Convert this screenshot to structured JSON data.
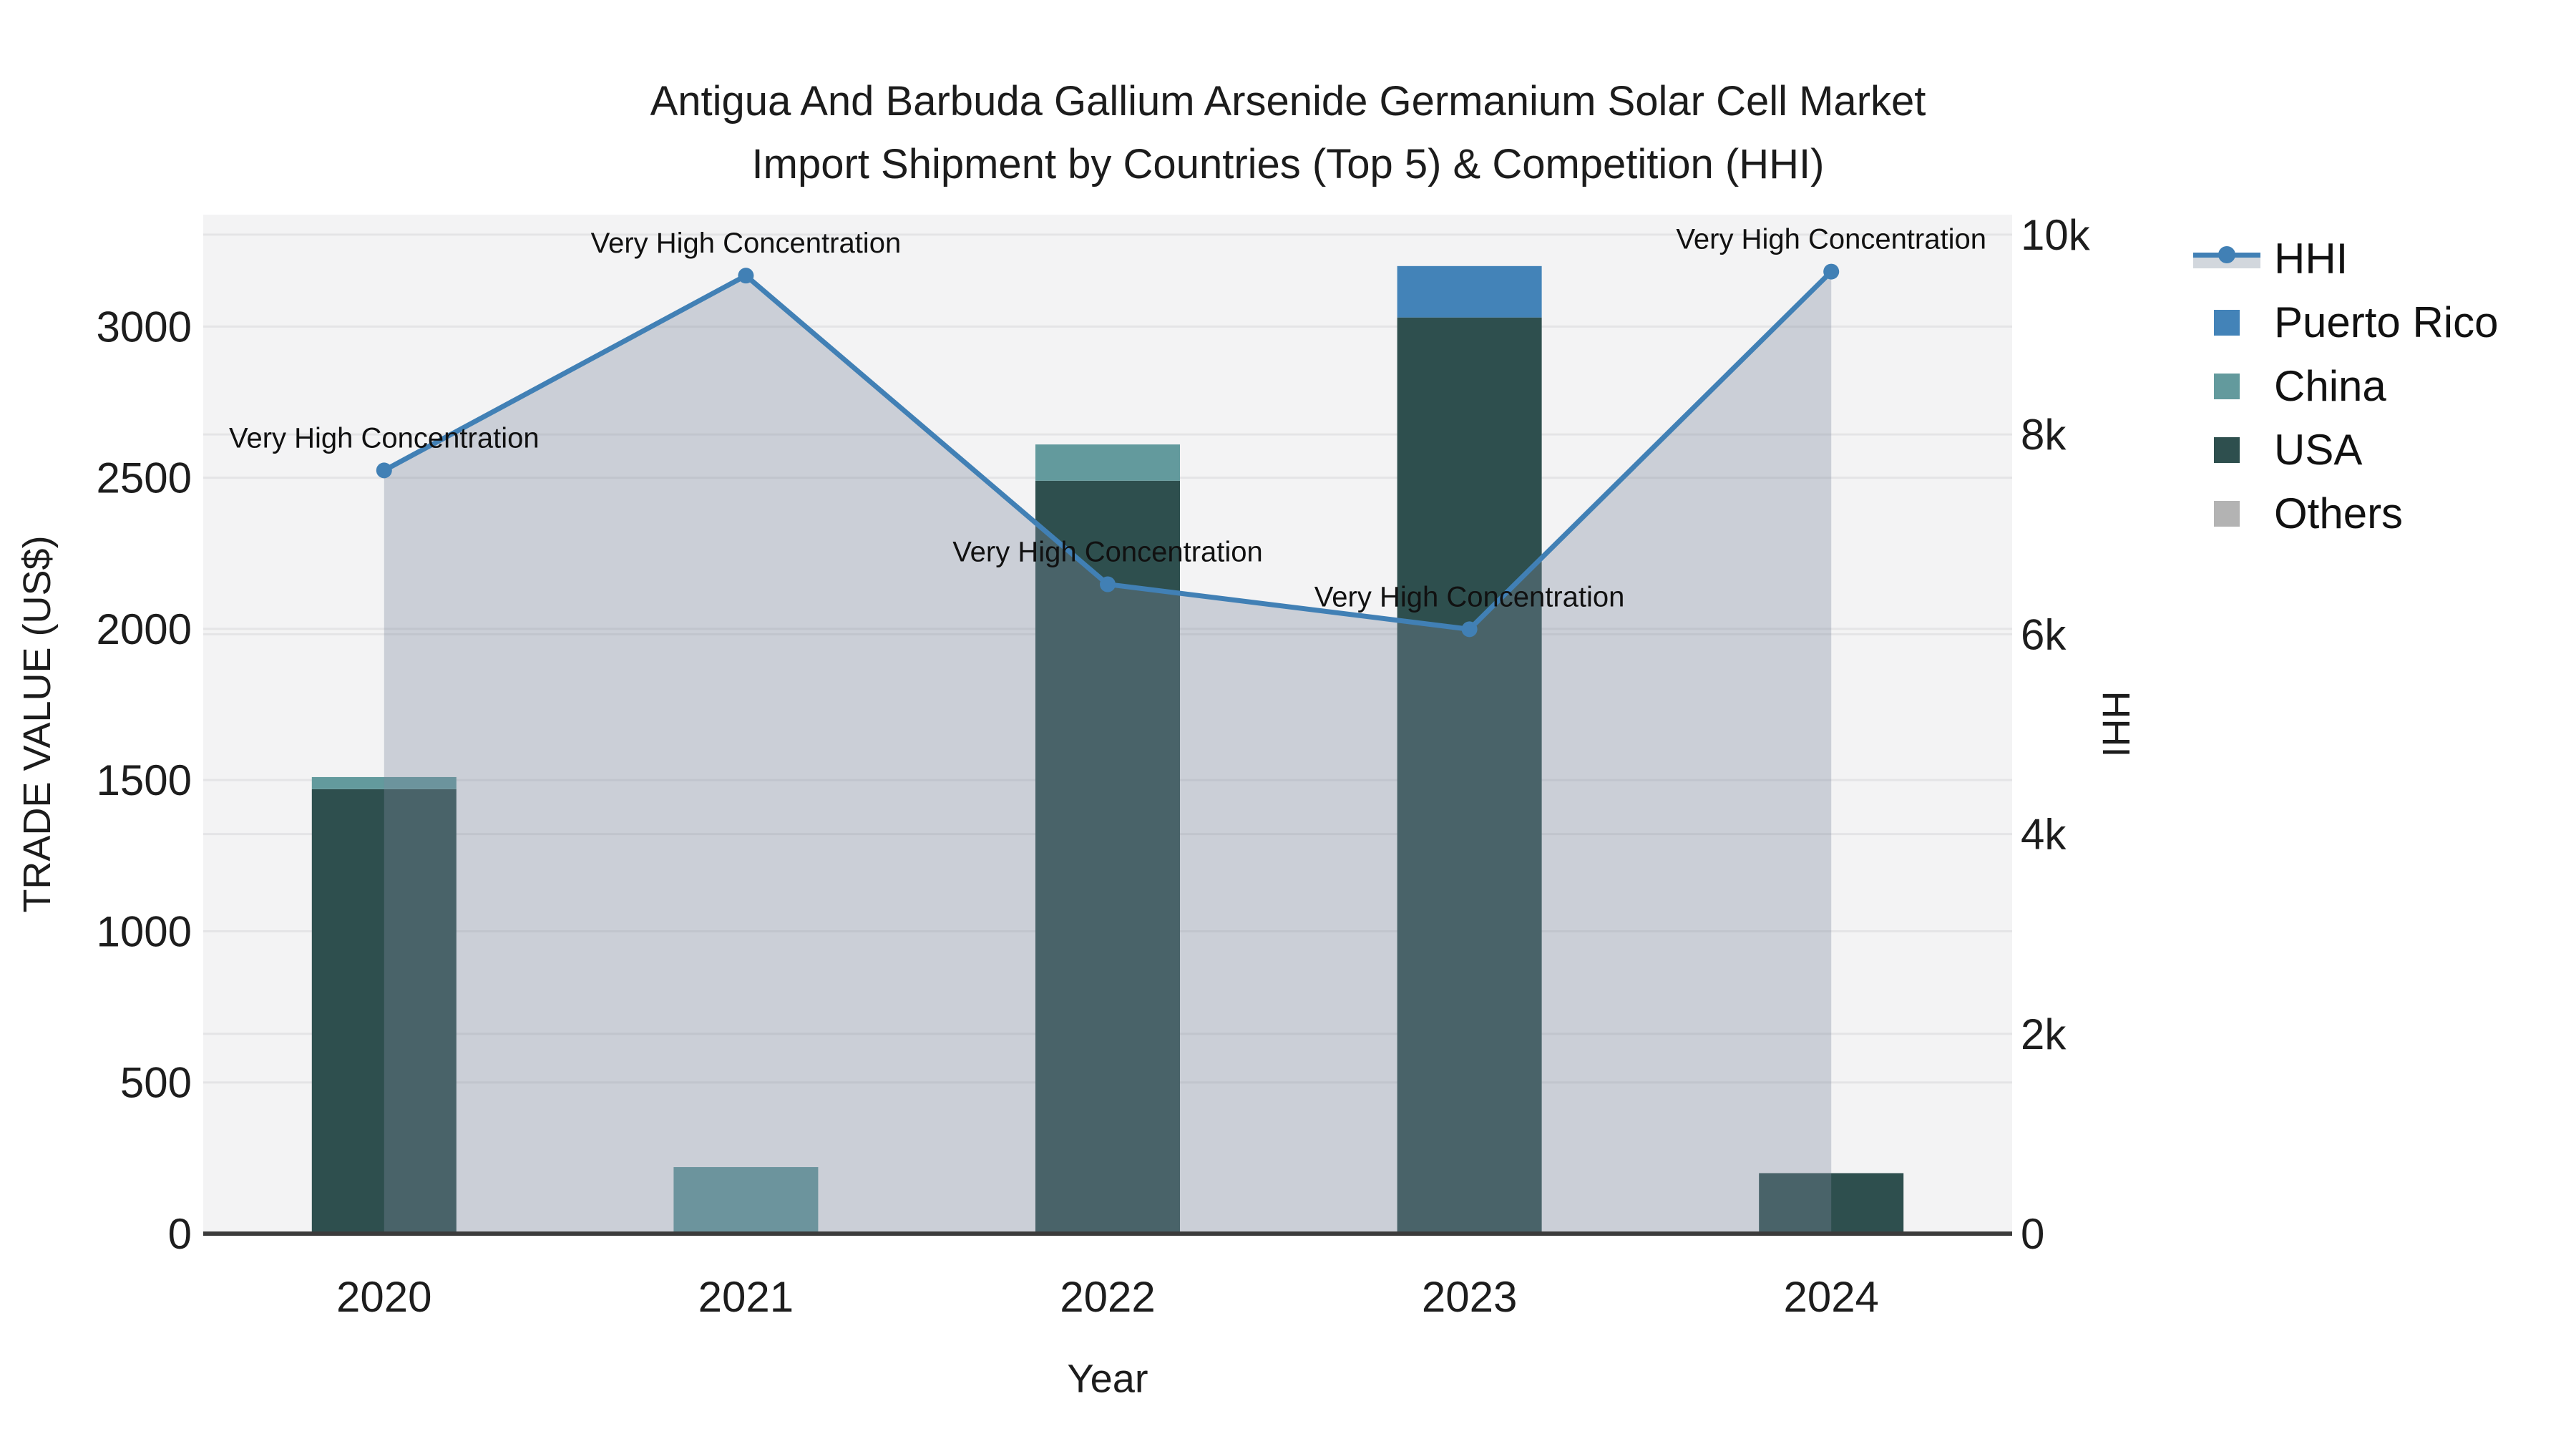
{
  "title": {
    "line1": "Antigua And Barbuda Gallium Arsenide Germanium Solar Cell Market",
    "line2": "Import Shipment by Countries (Top 5) & Competition (HHI)"
  },
  "axes": {
    "x_title": "Year",
    "y_left_title": "TRADE VALUE (US$)",
    "y_right_title": "HHI",
    "y_left_ticks": [
      {
        "label": "0",
        "value": 0
      },
      {
        "label": "500",
        "value": 500
      },
      {
        "label": "1000",
        "value": 1000
      },
      {
        "label": "1500",
        "value": 1500
      },
      {
        "label": "2000",
        "value": 2000
      },
      {
        "label": "2500",
        "value": 2500
      },
      {
        "label": "3000",
        "value": 3000
      }
    ],
    "y_right_ticks": [
      {
        "label": "0",
        "value": 0
      },
      {
        "label": "2k",
        "value": 2000
      },
      {
        "label": "4k",
        "value": 4000
      },
      {
        "label": "6k",
        "value": 6000
      },
      {
        "label": "8k",
        "value": 8000
      },
      {
        "label": "10k",
        "value": 10000
      }
    ],
    "y_left_range": [
      0,
      3370
    ],
    "y_right_range": [
      0,
      10200
    ]
  },
  "chart_data": {
    "type": "bar+line",
    "categories": [
      "2020",
      "2021",
      "2022",
      "2023",
      "2024"
    ],
    "series": [
      {
        "name": "USA",
        "color": "#2e4f4e",
        "values": [
          1470,
          0,
          2490,
          3030,
          200
        ]
      },
      {
        "name": "China",
        "color": "#639a9d",
        "values": [
          40,
          220,
          120,
          0,
          0
        ]
      },
      {
        "name": "Puerto Rico",
        "color": "#4383b8",
        "values": [
          0,
          0,
          0,
          170,
          0
        ]
      },
      {
        "name": "Others",
        "color": "#b3b3b3",
        "values": [
          0,
          0,
          0,
          0,
          0
        ]
      }
    ],
    "stack_totals": [
      1510,
      220,
      2610,
      3200,
      200
    ],
    "line": {
      "name": "HHI",
      "axis": "right",
      "color": "#4180b5",
      "area_fill": "rgba(125,139,157,0.34)",
      "values": [
        7640,
        9590,
        6500,
        6050,
        9630
      ]
    },
    "point_annotations": [
      "Very High Concentration",
      "Very High Concentration",
      "Very High Concentration",
      "Very High Concentration",
      "Very High Concentration"
    ],
    "title": "Antigua And Barbuda Gallium Arsenide Germanium Solar Cell Market Import Shipment by Countries (Top 5) & Competition (HHI)",
    "xlabel": "Year",
    "ylabel": "TRADE VALUE (US$)",
    "ylabel_secondary": "HHI",
    "legend_position": "right",
    "grid": true
  },
  "legend": {
    "items": [
      {
        "label": "HHI",
        "type": "line",
        "color": "#4180b5"
      },
      {
        "label": "Puerto Rico",
        "type": "square",
        "color": "#4383b8"
      },
      {
        "label": "China",
        "type": "square",
        "color": "#639a9d"
      },
      {
        "label": "USA",
        "type": "square",
        "color": "#2e4f4e"
      },
      {
        "label": "Others",
        "type": "square",
        "color": "#b3b3b3"
      }
    ]
  },
  "colors": {
    "plot_bg": "#f3f3f4",
    "grid": "#e4e4e6",
    "axis_line": "#3b3b3b",
    "text": "#1c1c1c"
  }
}
